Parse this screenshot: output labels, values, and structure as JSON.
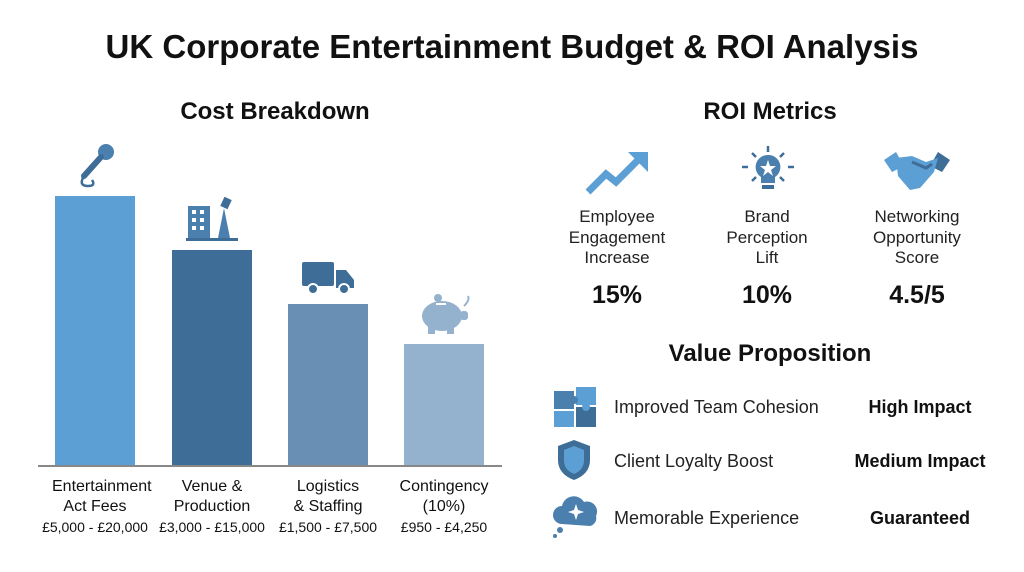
{
  "title": "UK Corporate Entertainment Budget & ROI Analysis",
  "chart_data": {
    "type": "bar",
    "title": "Cost Breakdown",
    "categories": [
      "Entertainment Act Fees",
      "Venue & Production",
      "Logistics & Staffing",
      "Contingency (10%)"
    ],
    "ranges": [
      "£5,000 - £20,000",
      "£3,000 - £15,000",
      "£1,500 - £7,500",
      "£950 - £4,250"
    ],
    "relative_heights": [
      1.0,
      0.8,
      0.6,
      0.45
    ],
    "colors": [
      "#5b9fd4",
      "#3e6e98",
      "#6a8fb5",
      "#94b2cd"
    ],
    "icons": [
      "microphone-icon",
      "venue-building-icon",
      "truck-icon",
      "piggy-bank-icon"
    ],
    "grid": false
  },
  "roi": {
    "title": "ROI Metrics",
    "metrics": [
      {
        "label": "Employee Engagement Increase",
        "value": "15%",
        "icon": "trend-arrow-icon"
      },
      {
        "label": "Brand Perception Lift",
        "value": "10%",
        "icon": "lightbulb-star-icon"
      },
      {
        "label": "Networking Opportunity Score",
        "value": "4.5/5",
        "icon": "handshake-icon"
      }
    ]
  },
  "value_prop": {
    "title": "Value Proposition",
    "items": [
      {
        "label": "Improved Team Cohesion",
        "impact": "High Impact",
        "icon": "puzzle-icon"
      },
      {
        "label": "Client Loyalty Boost",
        "impact": "Medium Impact",
        "icon": "shield-icon"
      },
      {
        "label": "Memorable Experience",
        "impact": "Guaranteed",
        "icon": "thought-cloud-icon"
      }
    ]
  },
  "accent": "#5b9fd4"
}
